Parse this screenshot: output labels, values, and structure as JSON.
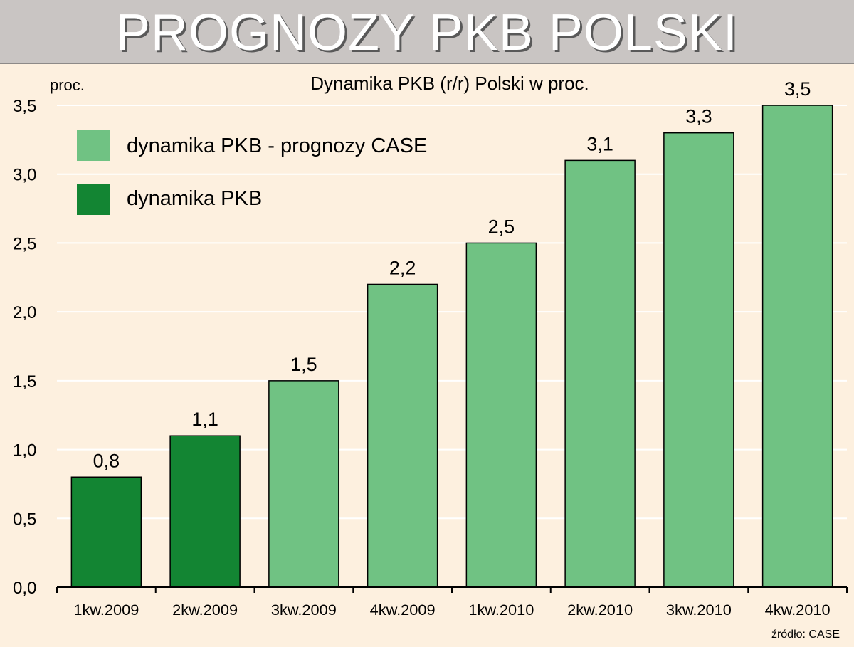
{
  "header": {
    "title": "PROGNOZY PKB POLSKI"
  },
  "chart_data": {
    "type": "bar",
    "title": "Dynamika PKB (r/r) Polski w proc.",
    "ylabel": "proc.",
    "categories": [
      "1kw.2009",
      "2kw.2009",
      "3kw.2009",
      "4kw.2009",
      "1kw.2010",
      "2kw.2010",
      "3kw.2010",
      "4kw.2010"
    ],
    "values": [
      0.8,
      1.1,
      1.5,
      2.2,
      2.5,
      3.1,
      3.3,
      3.5
    ],
    "value_labels": [
      "0,8",
      "1,1",
      "1,5",
      "2,2",
      "2,5",
      "3,1",
      "3,3",
      "3,5"
    ],
    "series_index": [
      1,
      1,
      0,
      0,
      0,
      0,
      0,
      0
    ],
    "series": [
      {
        "name": "dynamika PKB - prognozy CASE",
        "color": "#70c283"
      },
      {
        "name": "dynamika PKB",
        "color": "#138533"
      }
    ],
    "ylim": [
      0,
      3.5
    ],
    "yticks": [
      0,
      0.5,
      1.0,
      1.5,
      2.0,
      2.5,
      3.0,
      3.5
    ],
    "ytick_labels": [
      "0,0",
      "0,5",
      "1,0",
      "1,5",
      "2,0",
      "2,5",
      "3,0",
      "3,5"
    ],
    "grid": true,
    "legend_position": "top-left",
    "source": "źródło: CASE"
  }
}
